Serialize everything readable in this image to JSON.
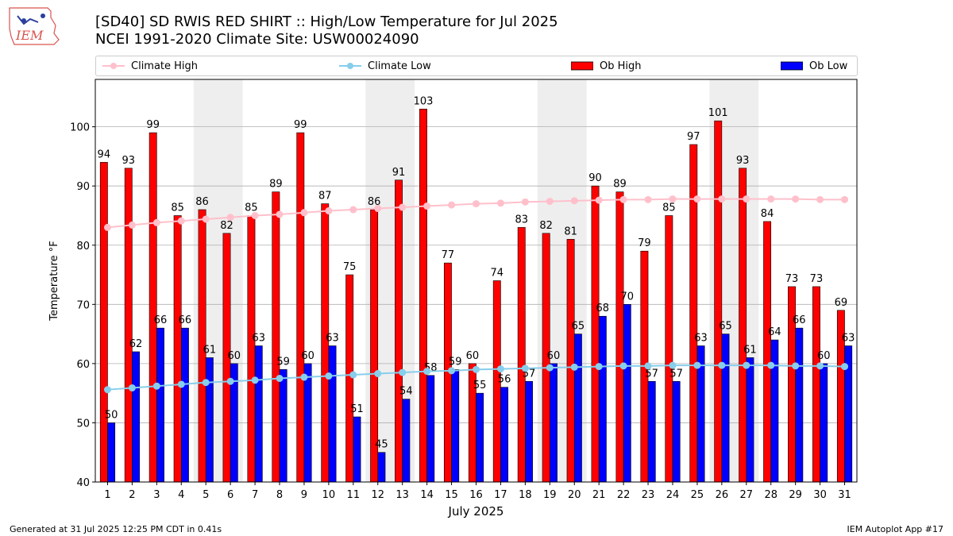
{
  "header": {
    "title": "[SD40] SD RWIS RED SHIRT :: High/Low Temperature for Jul 2025",
    "subtitle": "NCEI 1991-2020 Climate Site: USW00024090",
    "logo_text": "IEM"
  },
  "legend": {
    "items": [
      {
        "label": "Climate High",
        "color": "#ffc0cb",
        "kind": "line"
      },
      {
        "label": "Climate Low",
        "color": "#87ceeb",
        "kind": "line"
      },
      {
        "label": "Ob High",
        "color": "#ff0000",
        "kind": "bar"
      },
      {
        "label": "Ob Low",
        "color": "#0000ff",
        "kind": "bar"
      }
    ]
  },
  "footer": {
    "left": "Generated at 31 Jul 2025 12:25 PM CDT in 0.41s",
    "right": "IEM Autoplot App #17"
  },
  "chart_data": {
    "type": "bar",
    "title": "[SD40] SD RWIS RED SHIRT :: High/Low Temperature for Jul 2025",
    "subtitle": "NCEI 1991-2020 Climate Site: USW00024090",
    "xlabel": "July 2025",
    "ylabel": "Temperature °F",
    "ylim": [
      40,
      108
    ],
    "yticks": [
      40,
      50,
      60,
      70,
      80,
      90,
      100
    ],
    "grid": true,
    "legend_position": "top",
    "categories": [
      "1",
      "2",
      "3",
      "4",
      "5",
      "6",
      "7",
      "8",
      "9",
      "10",
      "11",
      "12",
      "13",
      "14",
      "15",
      "16",
      "17",
      "18",
      "19",
      "20",
      "21",
      "22",
      "23",
      "24",
      "25",
      "26",
      "27",
      "28",
      "29",
      "30",
      "31"
    ],
    "weekend_shaded_days": [
      [
        5,
        6
      ],
      [
        12,
        13
      ],
      [
        19,
        20
      ],
      [
        26,
        27
      ]
    ],
    "series": [
      {
        "name": "Ob High",
        "type": "bar",
        "color": "#ff0000",
        "values": [
          94,
          93,
          99,
          85,
          86,
          82,
          85,
          89,
          99,
          87,
          75,
          86,
          91,
          103,
          77,
          60,
          74,
          83,
          82,
          81,
          90,
          89,
          79,
          85,
          97,
          101,
          93,
          84,
          73,
          73,
          69
        ]
      },
      {
        "name": "Ob Low",
        "type": "bar",
        "color": "#0000ff",
        "values": [
          50,
          62,
          66,
          66,
          61,
          60,
          63,
          59,
          60,
          63,
          51,
          45,
          54,
          58,
          59,
          55,
          56,
          57,
          60,
          65,
          68,
          70,
          57,
          57,
          63,
          65,
          61,
          64,
          66,
          60,
          63
        ]
      },
      {
        "name": "Climate High",
        "type": "line",
        "color": "#ffc0cb",
        "values": [
          83.0,
          83.4,
          83.8,
          84.1,
          84.4,
          84.7,
          85.0,
          85.2,
          85.5,
          85.8,
          86.0,
          86.2,
          86.4,
          86.6,
          86.8,
          87.0,
          87.1,
          87.3,
          87.4,
          87.5,
          87.6,
          87.7,
          87.7,
          87.8,
          87.8,
          87.8,
          87.8,
          87.8,
          87.8,
          87.7,
          87.7
        ]
      },
      {
        "name": "Climate Low",
        "type": "line",
        "color": "#87ceeb",
        "values": [
          55.6,
          55.9,
          56.2,
          56.5,
          56.8,
          57.0,
          57.2,
          57.5,
          57.7,
          57.9,
          58.1,
          58.3,
          58.5,
          58.7,
          58.8,
          59.0,
          59.1,
          59.2,
          59.3,
          59.4,
          59.5,
          59.6,
          59.6,
          59.7,
          59.7,
          59.7,
          59.7,
          59.7,
          59.6,
          59.6,
          59.5
        ]
      }
    ]
  }
}
